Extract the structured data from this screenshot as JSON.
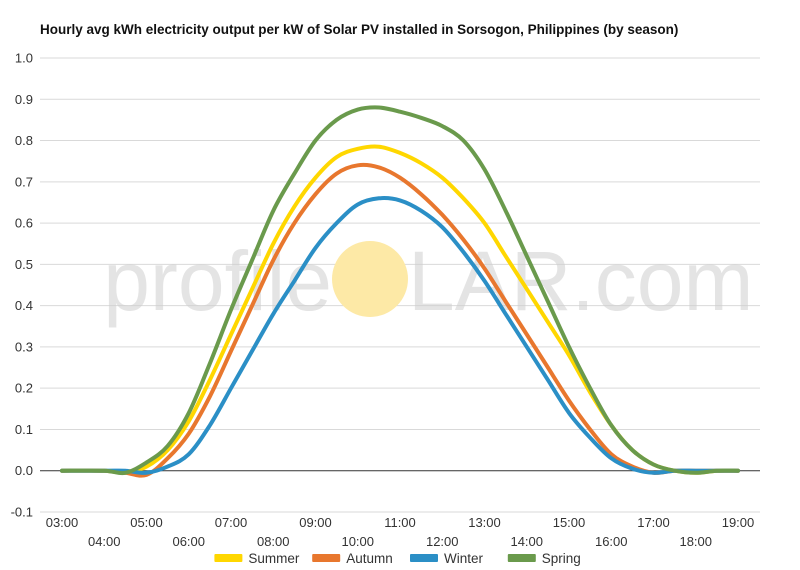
{
  "watermark": {
    "left": "profile",
    "right": "LAR.com",
    "sun_color": "#fde9a6"
  },
  "chart_data": {
    "type": "line",
    "title": "Hourly avg kWh electricity output per kW of Solar PV installed in Sorsogon, Philippines (by season)",
    "xlabel": "",
    "ylabel": "",
    "x": [
      3,
      4,
      4.5,
      5,
      5.5,
      6,
      6.5,
      7,
      7.5,
      8,
      8.5,
      9,
      9.5,
      10,
      10.5,
      11,
      11.5,
      12,
      12.5,
      13,
      13.5,
      14,
      14.5,
      15,
      15.5,
      16,
      16.5,
      17,
      17.5,
      18,
      18.5,
      19
    ],
    "xlim": [
      3,
      19
    ],
    "ylim": [
      -0.1,
      1.0
    ],
    "x_ticks": [
      "03:00",
      "04:00",
      "05:00",
      "06:00",
      "07:00",
      "08:00",
      "09:00",
      "10:00",
      "11:00",
      "12:00",
      "13:00",
      "14:00",
      "15:00",
      "16:00",
      "17:00",
      "18:00",
      "19:00"
    ],
    "y_ticks": [
      "1.0",
      "0.9",
      "0.8",
      "0.7",
      "0.6",
      "0.5",
      "0.4",
      "0.3",
      "0.2",
      "0.1",
      "0.0",
      "-0.1"
    ],
    "grid": true,
    "legend_position": "bottom",
    "series": [
      {
        "name": "Summer",
        "color": "#ffd700",
        "values": [
          0.0,
          0.0,
          -0.005,
          0.01,
          0.05,
          0.12,
          0.22,
          0.33,
          0.44,
          0.55,
          0.64,
          0.71,
          0.76,
          0.78,
          0.785,
          0.77,
          0.745,
          0.71,
          0.66,
          0.6,
          0.52,
          0.44,
          0.36,
          0.28,
          0.19,
          0.11,
          0.05,
          0.015,
          0.0,
          -0.005,
          0.0,
          0.0
        ]
      },
      {
        "name": "Autumn",
        "color": "#e8772e",
        "values": [
          0.0,
          0.0,
          -0.005,
          -0.01,
          0.03,
          0.09,
          0.18,
          0.29,
          0.4,
          0.51,
          0.6,
          0.67,
          0.72,
          0.74,
          0.735,
          0.71,
          0.67,
          0.62,
          0.56,
          0.49,
          0.41,
          0.33,
          0.25,
          0.17,
          0.1,
          0.04,
          0.01,
          -0.005,
          0.0,
          0.0,
          0.0,
          0.0
        ]
      },
      {
        "name": "Winter",
        "color": "#2b8fc6",
        "values": [
          0.0,
          0.0,
          0.0,
          -0.005,
          0.01,
          0.04,
          0.11,
          0.2,
          0.29,
          0.38,
          0.46,
          0.54,
          0.6,
          0.645,
          0.66,
          0.655,
          0.63,
          0.59,
          0.53,
          0.46,
          0.38,
          0.3,
          0.22,
          0.14,
          0.08,
          0.03,
          0.005,
          -0.005,
          0.0,
          0.0,
          0.0,
          0.0
        ]
      },
      {
        "name": "Spring",
        "color": "#6a9a4c",
        "values": [
          0.0,
          0.0,
          -0.005,
          0.02,
          0.06,
          0.14,
          0.26,
          0.39,
          0.51,
          0.63,
          0.72,
          0.8,
          0.85,
          0.875,
          0.88,
          0.87,
          0.855,
          0.835,
          0.8,
          0.73,
          0.63,
          0.52,
          0.41,
          0.3,
          0.2,
          0.11,
          0.05,
          0.015,
          0.0,
          -0.005,
          0.0,
          0.0
        ]
      }
    ]
  }
}
